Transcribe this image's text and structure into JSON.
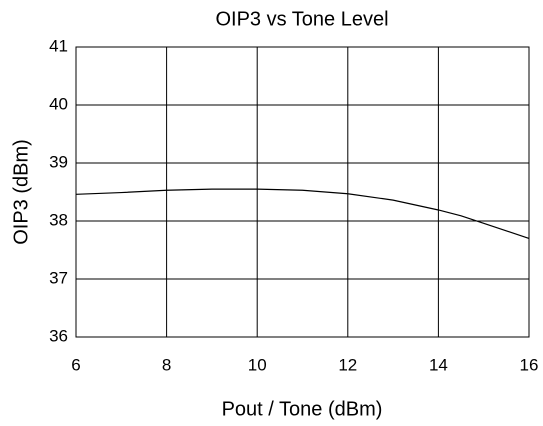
{
  "chart_data": {
    "type": "line",
    "title": "OIP3 vs Tone Level",
    "x_label": "Pout / Tone (dBm)",
    "y_label": "OIP3 (dBm)",
    "x": [
      6,
      7,
      8,
      9,
      10,
      11,
      12,
      13,
      14,
      14.5,
      15,
      16
    ],
    "series": [
      {
        "name": "OIP3",
        "color": "#000000",
        "values": [
          38.46,
          38.49,
          38.53,
          38.55,
          38.55,
          38.53,
          38.47,
          38.36,
          38.19,
          38.09,
          37.96,
          37.7
        ]
      }
    ],
    "xlim": [
      6,
      16
    ],
    "xticks": [
      6,
      8,
      10,
      12,
      14,
      16
    ],
    "ylim": [
      36,
      41
    ],
    "yticks": [
      36,
      37,
      38,
      39,
      40,
      41
    ],
    "grid": true
  }
}
